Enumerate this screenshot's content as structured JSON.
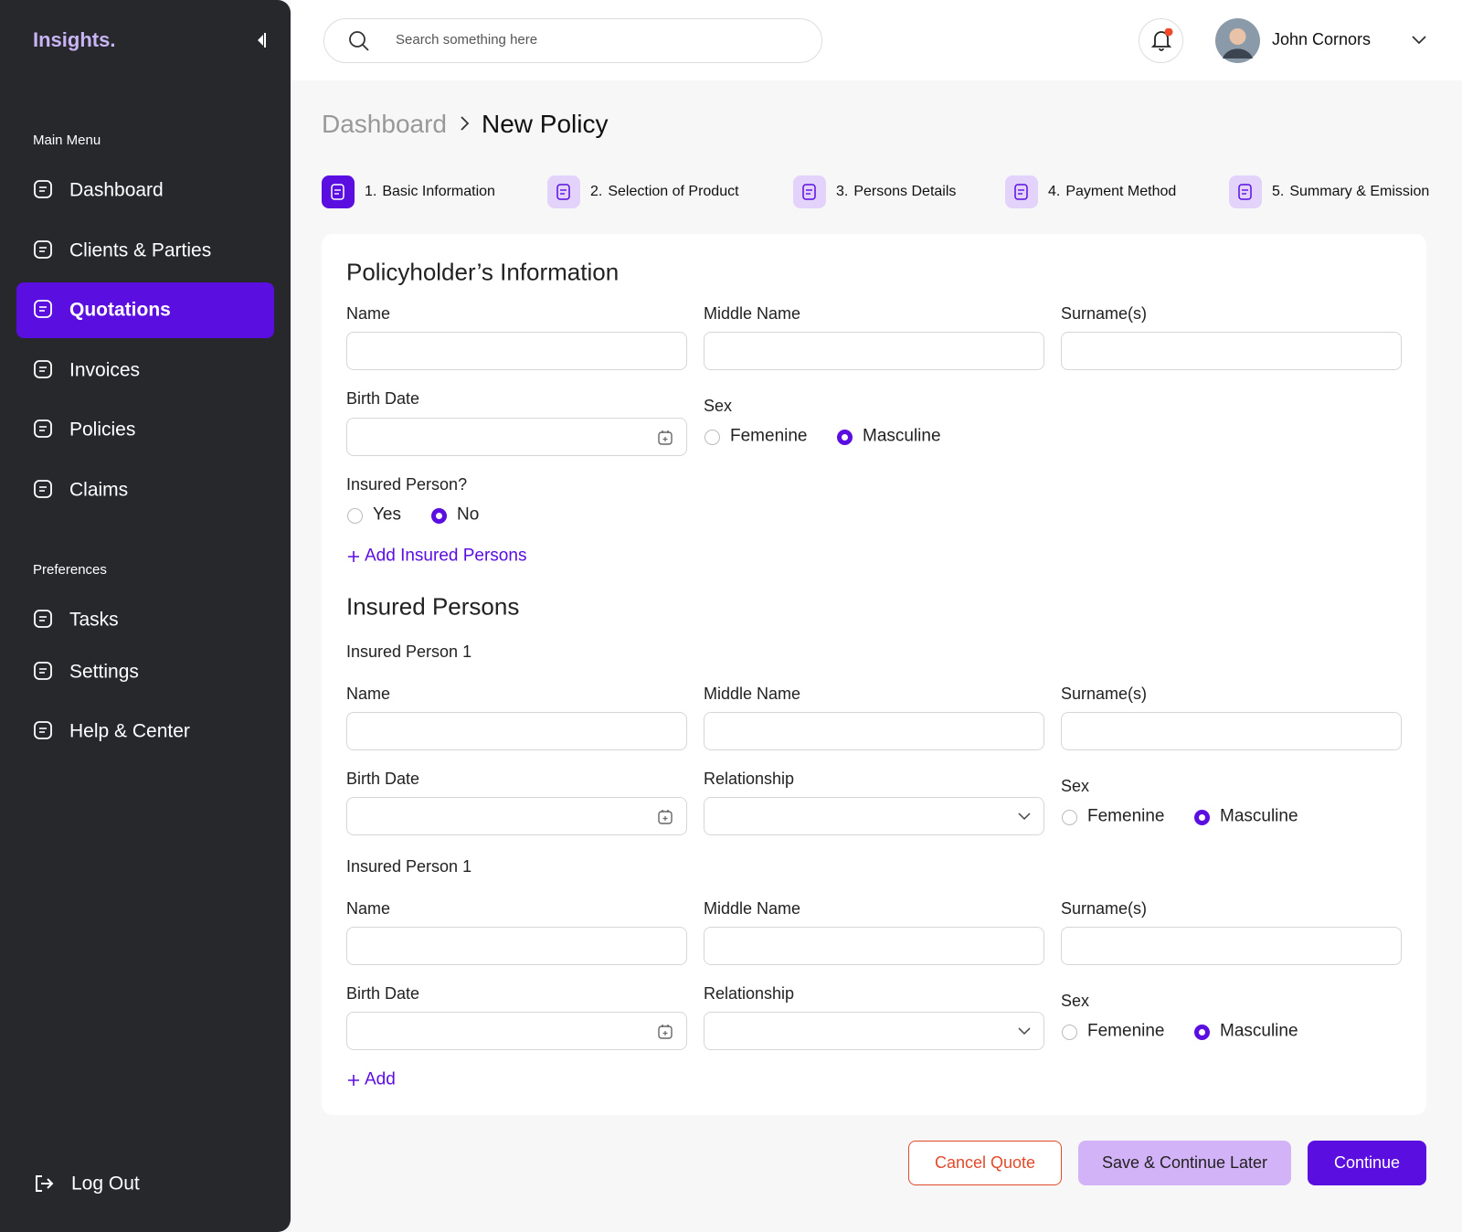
{
  "sidebar": {
    "logo": "Insights.",
    "main_menu_title": "Main Menu",
    "main_menu": [
      "Dashboard",
      "Clients & Parties",
      "Quotations",
      "Invoices",
      "Policies",
      "Claims"
    ],
    "active_index": 2,
    "preferences_title": "Preferences",
    "preferences": [
      "Tasks",
      "Settings",
      "Help & Center"
    ],
    "logout": "Log Out"
  },
  "header": {
    "search_placeholder": "Search something here",
    "user_name": "John Cornors"
  },
  "breadcrumb": [
    "Dashboard",
    "New Policy"
  ],
  "steps": [
    {
      "number": "1.",
      "label": "Basic Information"
    },
    {
      "number": "2.",
      "label": "Selection of Product"
    },
    {
      "number": "3.",
      "label": "Persons Details"
    },
    {
      "number": "4.",
      "label": "Payment Method"
    },
    {
      "number": "5.",
      "label": "Summary & Emission"
    }
  ],
  "active_step": 0,
  "policyholder": {
    "title": "Policyholder’s Information",
    "name_label": "Name",
    "middle_name_label": "Middle Name",
    "surname_label": "Surname(s)",
    "birth_date_label": "Birth Date",
    "sex_label": "Sex",
    "sex_options": [
      "Femenine",
      "Masculine"
    ],
    "sex_selected": 1,
    "insured_label": "Insured Person?",
    "insured_options": [
      "Yes",
      "No"
    ],
    "insured_selected": 1,
    "add_link": "Add Insured Persons"
  },
  "insured_persons": {
    "title": "Insured Persons",
    "persons": [
      {
        "heading": "Insured Person 1",
        "name_label": "Name",
        "middle_name_label": "Middle Name",
        "surname_label": "Surname(s)",
        "birth_date_label": "Birth Date",
        "relationship_label": "Relationship",
        "sex_label": "Sex",
        "sex_options": [
          "Femenine",
          "Masculine"
        ],
        "sex_selected": 1
      },
      {
        "heading": "Insured Person 1",
        "name_label": "Name",
        "middle_name_label": "Middle Name",
        "surname_label": "Surname(s)",
        "birth_date_label": "Birth Date",
        "relationship_label": "Relationship",
        "sex_label": "Sex",
        "sex_options": [
          "Femenine",
          "Masculine"
        ],
        "sex_selected": 1
      }
    ],
    "add_link": "Add"
  },
  "buttons": {
    "cancel": "Cancel Quote",
    "save": "Save & Continue Later",
    "continue": "Continue"
  }
}
